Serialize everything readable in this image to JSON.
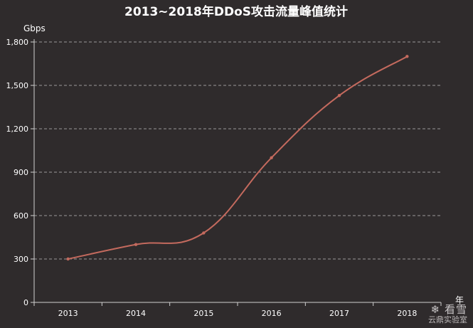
{
  "chart_data": {
    "type": "line",
    "title": "2013~2018年DDoS攻击流量峰值统计",
    "xlabel": "年",
    "ylabel": "Gbps",
    "categories": [
      "2013",
      "2014",
      "2015",
      "2016",
      "2017",
      "2018"
    ],
    "series": [
      {
        "values": [
          300,
          400,
          480,
          1000,
          1430,
          1700
        ]
      }
    ],
    "ylim": [
      0,
      1800
    ],
    "yticks": [
      0,
      300,
      600,
      900,
      1200,
      1500,
      1800
    ],
    "ytick_labels": [
      "0",
      "300",
      "600",
      "900",
      "1,200",
      "1,500",
      "1,800"
    ],
    "grid": true,
    "line_color": "#c46a5e"
  },
  "watermark": {
    "top": "看雪",
    "bottom": "云鼎实验室"
  }
}
